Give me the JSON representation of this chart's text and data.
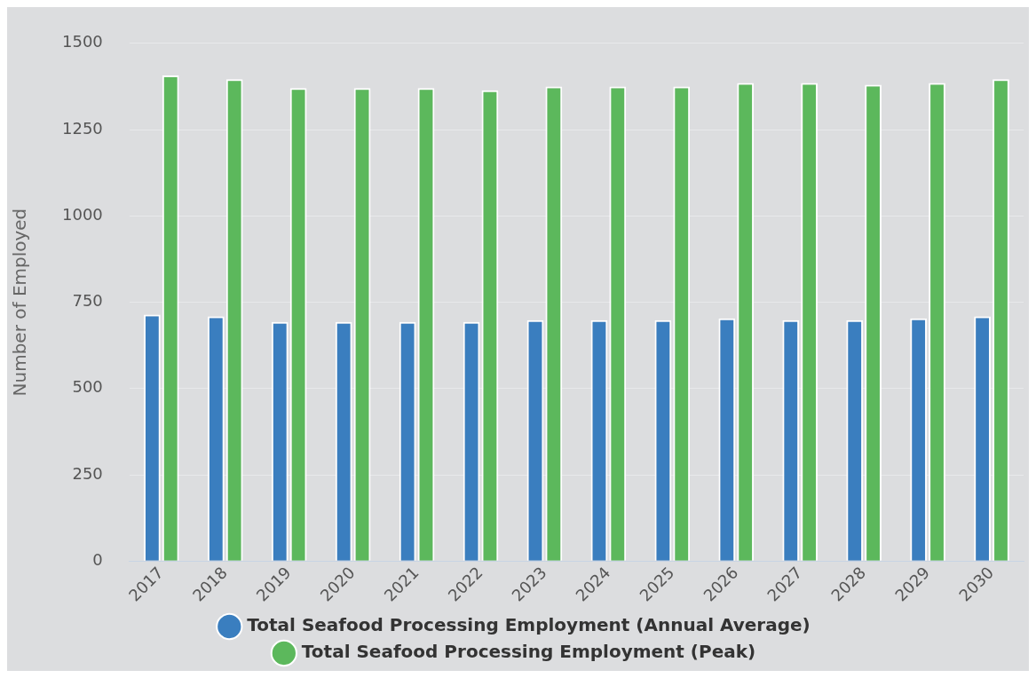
{
  "chart_data": {
    "type": "bar",
    "ylabel": "Number of Employed",
    "categories": [
      "2017",
      "2018",
      "2019",
      "2020",
      "2021",
      "2022",
      "2023",
      "2024",
      "2025",
      "2026",
      "2027",
      "2028",
      "2029",
      "2030"
    ],
    "series": [
      {
        "name": "Total Seafood Processing Employment (Annual Average)",
        "color": "#3a7ebf",
        "values": [
          714,
          709,
          693,
          693,
          693,
          693,
          698,
          698,
          698,
          703,
          698,
          698,
          703,
          709
        ]
      },
      {
        "name": "Total Seafood Processing Employment (Peak)",
        "color": "#5cb85c",
        "values": [
          1407,
          1396,
          1370,
          1370,
          1370,
          1364,
          1375,
          1375,
          1375,
          1385,
          1385,
          1380,
          1385,
          1396
        ]
      }
    ],
    "ylim": [
      0,
      1500
    ],
    "yticks": [
      0,
      250,
      500,
      750,
      1000,
      1250,
      1500
    ],
    "grid": "y",
    "legend": "bottom"
  }
}
